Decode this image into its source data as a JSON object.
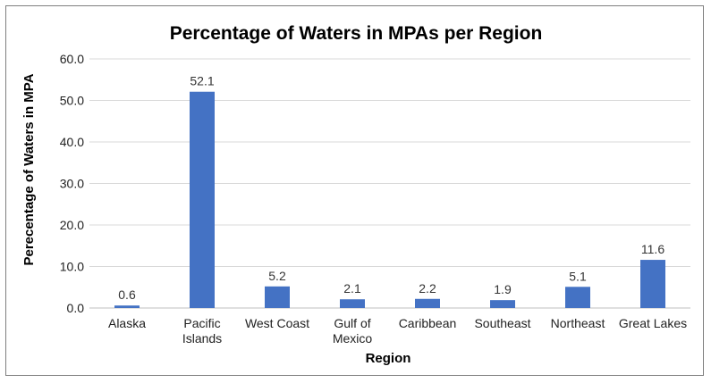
{
  "chart_data": {
    "type": "bar",
    "title": "Percentage of Waters in MPAs per Region",
    "xlabel": "Region",
    "ylabel": "Perecentage of Waters in MPA",
    "categories": [
      [
        "Alaska"
      ],
      [
        "Pacific",
        "Islands"
      ],
      [
        "West Coast"
      ],
      [
        "Gulf of",
        "Mexico"
      ],
      [
        "Caribbean"
      ],
      [
        "Southeast"
      ],
      [
        "Northeast"
      ],
      [
        "Great Lakes"
      ]
    ],
    "values": [
      0.6,
      52.1,
      5.2,
      2.1,
      2.2,
      1.9,
      5.1,
      11.6
    ],
    "ylim": [
      0,
      60
    ],
    "yticks": [
      0,
      10,
      20,
      30,
      40,
      50,
      60
    ],
    "tick_decimals": 1,
    "grid": true,
    "legend": "none",
    "bar_color": "#4472c4"
  }
}
